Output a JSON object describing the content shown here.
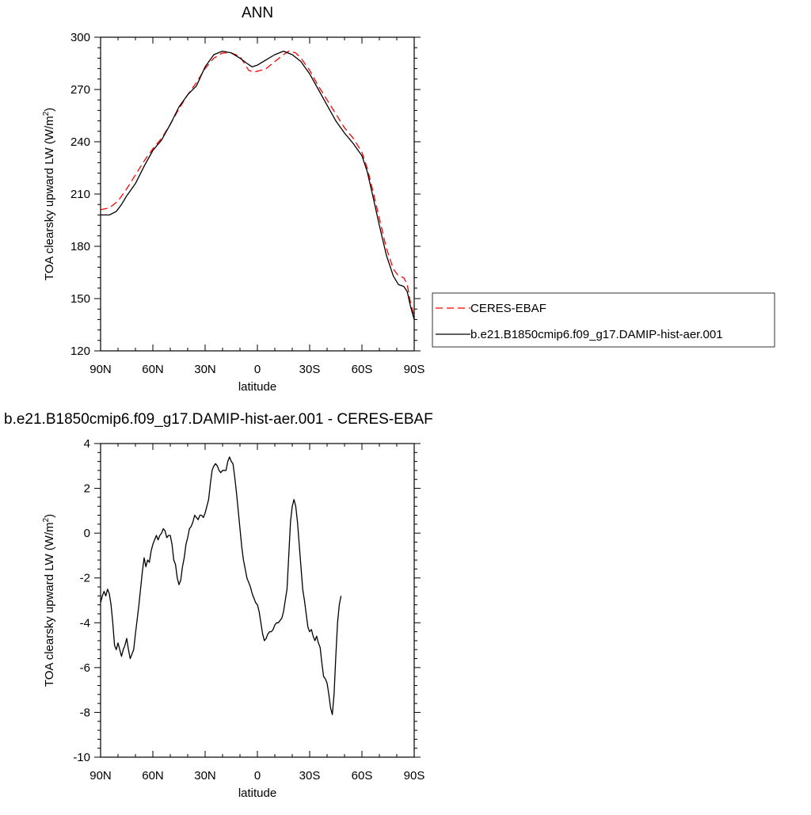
{
  "chart_data": [
    {
      "type": "line",
      "title": "ANN",
      "xlabel": "latitude",
      "ylabel": "TOA clearsky upward LW (W/m",
      "ylabel_sup": "2",
      "ylabel_close": ")",
      "xlim": [
        90,
        -90
      ],
      "ylim": [
        120,
        300
      ],
      "x_ticks": [
        90,
        60,
        30,
        0,
        -30,
        -60,
        -90
      ],
      "x_tick_labels": [
        "90N",
        "60N",
        "30N",
        "0",
        "30S",
        "60S",
        "90S"
      ],
      "y_ticks": [
        120,
        150,
        180,
        210,
        240,
        270,
        300
      ],
      "y_tick_labels": [
        "120",
        "150",
        "180",
        "210",
        "240",
        "270",
        "300"
      ],
      "grid": false,
      "legend_position": "right",
      "series": [
        {
          "name": "CERES-EBAF",
          "color": "#ff0000",
          "dash": "dashed",
          "points": [
            [
              90,
              201
            ],
            [
              85,
              202
            ],
            [
              80,
              206
            ],
            [
              75,
              213
            ],
            [
              70,
              221
            ],
            [
              65,
              229
            ],
            [
              60,
              236
            ],
            [
              55,
              242
            ],
            [
              50,
              250
            ],
            [
              45,
              259
            ],
            [
              40,
              267
            ],
            [
              35,
              274
            ],
            [
              30,
              282
            ],
            [
              25,
              288
            ],
            [
              20,
              291
            ],
            [
              15,
              291
            ],
            [
              10,
              289
            ],
            [
              5,
              281
            ],
            [
              2,
              280
            ],
            [
              -2,
              281
            ],
            [
              -5,
              282
            ],
            [
              -10,
              286
            ],
            [
              -15,
              290
            ],
            [
              -18,
              292
            ],
            [
              -22,
              291
            ],
            [
              -25,
              288
            ],
            [
              -30,
              281
            ],
            [
              -35,
              272
            ],
            [
              -40,
              264
            ],
            [
              -45,
              256
            ],
            [
              -50,
              248
            ],
            [
              -55,
              242
            ],
            [
              -60,
              234
            ],
            [
              -63,
              225
            ],
            [
              -66,
              213
            ],
            [
              -70,
              196
            ],
            [
              -74,
              179
            ],
            [
              -78,
              167
            ],
            [
              -81,
              163
            ],
            [
              -84,
              162
            ],
            [
              -86,
              158
            ],
            [
              -88,
              147
            ],
            [
              -90,
              140
            ]
          ]
        },
        {
          "name": "b.e21.B1850cmip6.f09_g17.DAMIP-hist-aer.001",
          "color": "#000000",
          "dash": "solid",
          "points": [
            [
              90,
              198
            ],
            [
              85,
              198
            ],
            [
              81,
              200
            ],
            [
              78,
              204
            ],
            [
              75,
              209
            ],
            [
              70,
              216
            ],
            [
              65,
              226
            ],
            [
              60,
              235
            ],
            [
              55,
              241
            ],
            [
              50,
              250
            ],
            [
              45,
              260
            ],
            [
              40,
              267
            ],
            [
              35,
              272
            ],
            [
              30,
              283
            ],
            [
              25,
              290
            ],
            [
              20,
              292
            ],
            [
              15,
              291
            ],
            [
              10,
              288
            ],
            [
              6,
              285
            ],
            [
              3,
              283
            ],
            [
              0,
              284
            ],
            [
              -5,
              287
            ],
            [
              -10,
              290
            ],
            [
              -15,
              292
            ],
            [
              -20,
              290
            ],
            [
              -25,
              286
            ],
            [
              -30,
              279
            ],
            [
              -35,
              270
            ],
            [
              -40,
              261
            ],
            [
              -45,
              252
            ],
            [
              -50,
              245
            ],
            [
              -55,
              239
            ],
            [
              -60,
              232
            ],
            [
              -63,
              223
            ],
            [
              -66,
              210
            ],
            [
              -70,
              192
            ],
            [
              -74,
              175
            ],
            [
              -78,
              163
            ],
            [
              -81,
              158
            ],
            [
              -84,
              157
            ],
            [
              -86,
              154
            ],
            [
              -88,
              145
            ],
            [
              -90,
              138
            ]
          ]
        }
      ]
    },
    {
      "type": "line",
      "title": "b.e21.B1850cmip6.f09_g17.DAMIP-hist-aer.001 - CERES-EBAF",
      "xlabel": "latitude",
      "ylabel": "TOA clearsky upward LW (W/m",
      "ylabel_sup": "2",
      "ylabel_close": ")",
      "xlim": [
        90,
        -90
      ],
      "ylim": [
        -10,
        4
      ],
      "x_ticks": [
        90,
        60,
        30,
        0,
        -30,
        -60,
        -90
      ],
      "x_tick_labels": [
        "90N",
        "60N",
        "30N",
        "0",
        "30S",
        "60S",
        "90S"
      ],
      "y_ticks": [
        -10,
        -8,
        -6,
        -4,
        -2,
        0,
        2,
        4
      ],
      "y_tick_labels": [
        "-10",
        "-8",
        "-6",
        "-4",
        "-2",
        "0",
        "2",
        "4"
      ],
      "grid": false,
      "series": [
        {
          "color": "#000000",
          "dash": "solid",
          "points": [
            [
              90,
              -3.1
            ],
            [
              89,
              -2.8
            ],
            [
              88,
              -2.6
            ],
            [
              87,
              -2.8
            ],
            [
              86,
              -2.5
            ],
            [
              85,
              -2.7
            ],
            [
              84,
              -3.2
            ],
            [
              83,
              -4.0
            ],
            [
              82,
              -5.0
            ],
            [
              81,
              -5.2
            ],
            [
              80,
              -4.9
            ],
            [
              79,
              -5.2
            ],
            [
              78,
              -5.5
            ],
            [
              77,
              -5.2
            ],
            [
              76,
              -5.0
            ],
            [
              75,
              -4.7
            ],
            [
              74,
              -5.2
            ],
            [
              73,
              -5.6
            ],
            [
              72,
              -5.4
            ],
            [
              71,
              -5.2
            ],
            [
              70,
              -4.5
            ],
            [
              68,
              -3.2
            ],
            [
              66,
              -1.7
            ],
            [
              65,
              -1.1
            ],
            [
              64,
              -1.5
            ],
            [
              63,
              -1.2
            ],
            [
              62,
              -1.3
            ],
            [
              61,
              -0.8
            ],
            [
              60,
              -0.5
            ],
            [
              59,
              -0.3
            ],
            [
              58,
              -0.1
            ],
            [
              57,
              -0.3
            ],
            [
              56,
              -0.1
            ],
            [
              55,
              0.0
            ],
            [
              54,
              0.2
            ],
            [
              53,
              0.1
            ],
            [
              52,
              -0.2
            ],
            [
              51,
              -0.1
            ],
            [
              50,
              -0.1
            ],
            [
              49,
              -0.5
            ],
            [
              48,
              -1.2
            ],
            [
              47,
              -1.4
            ],
            [
              46,
              -2.0
            ],
            [
              45,
              -2.3
            ],
            [
              44,
              -2.1
            ],
            [
              43,
              -1.5
            ],
            [
              42,
              -1.1
            ],
            [
              41,
              -0.5
            ],
            [
              40,
              -0.2
            ],
            [
              39,
              0.2
            ],
            [
              38,
              0.3
            ],
            [
              37,
              0.5
            ],
            [
              36,
              0.8
            ],
            [
              35,
              0.7
            ],
            [
              34,
              0.6
            ],
            [
              33,
              0.8
            ],
            [
              32,
              0.8
            ],
            [
              31,
              0.7
            ],
            [
              30,
              0.9
            ],
            [
              29,
              1.2
            ],
            [
              28,
              1.5
            ],
            [
              27,
              2.2
            ],
            [
              26,
              2.8
            ],
            [
              25,
              3.0
            ],
            [
              24,
              3.1
            ],
            [
              23,
              3.0
            ],
            [
              22,
              2.8
            ],
            [
              21,
              2.7
            ],
            [
              20,
              2.8
            ],
            [
              19,
              2.8
            ],
            [
              18,
              2.8
            ],
            [
              17,
              3.2
            ],
            [
              16,
              3.4
            ],
            [
              15,
              3.2
            ],
            [
              14,
              3.1
            ],
            [
              13,
              2.5
            ],
            [
              12,
              1.8
            ],
            [
              11,
              1.0
            ],
            [
              10,
              0.2
            ],
            [
              9,
              -0.6
            ],
            [
              8,
              -1.2
            ],
            [
              7,
              -1.6
            ],
            [
              6,
              -2.0
            ],
            [
              5,
              -2.2
            ],
            [
              4,
              -2.4
            ],
            [
              3,
              -2.7
            ],
            [
              2,
              -2.9
            ],
            [
              1,
              -3.1
            ],
            [
              0,
              -3.2
            ],
            [
              -1,
              -3.5
            ],
            [
              -2,
              -4.0
            ],
            [
              -3,
              -4.5
            ],
            [
              -4,
              -4.8
            ],
            [
              -5,
              -4.7
            ],
            [
              -6,
              -4.5
            ],
            [
              -7,
              -4.4
            ],
            [
              -8,
              -4.4
            ],
            [
              -9,
              -4.3
            ],
            [
              -10,
              -4.1
            ],
            [
              -11,
              -4.0
            ],
            [
              -12,
              -4.0
            ],
            [
              -13,
              -3.9
            ],
            [
              -14,
              -3.8
            ],
            [
              -15,
              -3.5
            ],
            [
              -16,
              -3.0
            ],
            [
              -17,
              -2.5
            ],
            [
              -18,
              -1.0
            ],
            [
              -19,
              0.5
            ],
            [
              -20,
              1.2
            ],
            [
              -21,
              1.5
            ],
            [
              -22,
              1.2
            ],
            [
              -23,
              0.5
            ],
            [
              -24,
              -0.5
            ],
            [
              -25,
              -1.5
            ],
            [
              -26,
              -2.5
            ],
            [
              -27,
              -3.0
            ],
            [
              -28,
              -3.6
            ],
            [
              -29,
              -4.2
            ],
            [
              -30,
              -4.4
            ],
            [
              -31,
              -4.3
            ],
            [
              -32,
              -4.6
            ],
            [
              -33,
              -4.8
            ],
            [
              -34,
              -4.6
            ],
            [
              -35,
              -4.9
            ],
            [
              -36,
              -5.1
            ],
            [
              -37,
              -5.8
            ],
            [
              -38,
              -6.4
            ],
            [
              -39,
              -6.5
            ],
            [
              -40,
              -6.7
            ],
            [
              -41,
              -7.2
            ],
            [
              -42,
              -7.8
            ],
            [
              -43,
              -8.1
            ],
            [
              -44,
              -7.2
            ],
            [
              -45,
              -5.5
            ],
            [
              -46,
              -4.0
            ],
            [
              -47,
              -3.2
            ],
            [
              -48,
              -2.8
            ]
          ]
        }
      ]
    }
  ]
}
